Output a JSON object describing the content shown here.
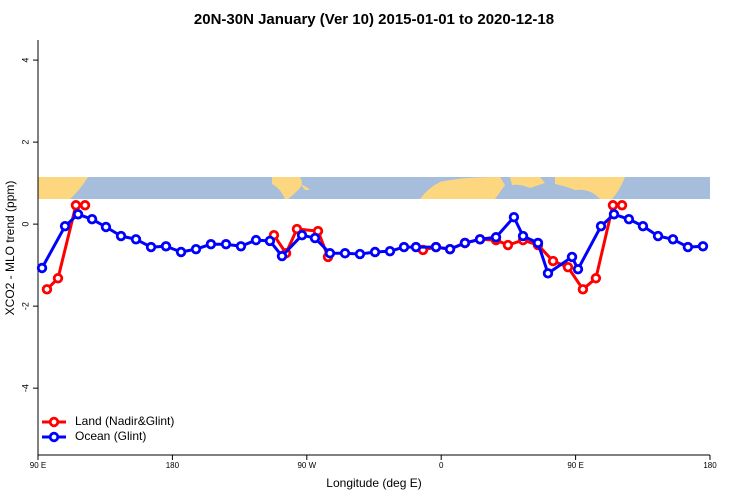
{
  "chart_data": {
    "type": "line",
    "title": "20N-30N January (Ver 10)   2015-01-01 to 2020-12-18",
    "x_label": "Longitude (deg E)",
    "y_label": "XCO2 - MLO trend (ppm)",
    "xlim": [
      90,
      540
    ],
    "ylim": [
      -5.63,
      4.49
    ],
    "xticks": [
      {
        "value": 90,
        "label": "90 E"
      },
      {
        "value": 180,
        "label": "180"
      },
      {
        "value": 270,
        "label": "90 W"
      },
      {
        "value": 360,
        "label": "0"
      },
      {
        "value": 450,
        "label": "90 E"
      },
      {
        "value": 540,
        "label": "180"
      }
    ],
    "yticks": [
      -4,
      -2,
      0,
      2,
      4
    ],
    "legend": "bottom-left",
    "series": [
      {
        "name": "Land (Nadir&Glint)",
        "color": "#ff0000",
        "x": [
          96.0,
          103.4,
          115.4,
          121.5,
          null,
          248.0,
          256.1,
          263.4,
          277.5,
          284.2,
          null,
          347.8,
          356.5,
          365.9,
          375.9,
          386.0,
          396.7,
          404.7,
          414.8,
          424.8,
          434.9,
          444.9,
          454.9,
          463.6,
          475.0,
          481.1
        ],
        "values": [
          -1.59,
          -1.32,
          0.46,
          0.46,
          null,
          -0.27,
          -0.71,
          -0.12,
          -0.17,
          -0.8,
          null,
          -0.63,
          -0.56,
          -0.61,
          -0.46,
          -0.37,
          -0.39,
          -0.51,
          -0.39,
          -0.51,
          -0.9,
          -1.05,
          -1.59,
          -1.32,
          0.46,
          0.46
        ]
      },
      {
        "name": "Ocean (Glint)",
        "color": "#0000ff",
        "x": [
          92.7,
          108.1,
          116.8,
          126.2,
          135.5,
          145.6,
          155.6,
          165.7,
          175.7,
          185.8,
          195.8,
          205.8,
          215.9,
          225.9,
          236.0,
          245.3,
          253.4,
          266.8,
          275.5,
          285.5,
          295.6,
          305.6,
          315.7,
          325.7,
          335.1,
          343.1,
          356.5,
          365.9,
          375.9,
          386.0,
          396.7,
          408.7,
          414.8,
          424.8,
          431.5,
          447.6,
          451.6,
          467.0,
          475.7,
          485.7,
          495.1,
          505.2,
          515.2,
          525.2,
          535.3
        ],
        "values": [
          -1.07,
          -0.05,
          0.24,
          0.12,
          -0.07,
          -0.29,
          -0.37,
          -0.56,
          -0.54,
          -0.68,
          -0.61,
          -0.49,
          -0.49,
          -0.54,
          -0.39,
          -0.41,
          -0.78,
          -0.27,
          -0.34,
          -0.71,
          -0.71,
          -0.73,
          -0.68,
          -0.66,
          -0.56,
          -0.56,
          -0.56,
          -0.61,
          -0.46,
          -0.37,
          -0.32,
          0.17,
          -0.29,
          -0.46,
          -1.2,
          -0.8,
          -1.1,
          -0.05,
          0.24,
          0.12,
          -0.05,
          -0.29,
          -0.37,
          -0.56,
          -0.54
        ]
      }
    ]
  }
}
